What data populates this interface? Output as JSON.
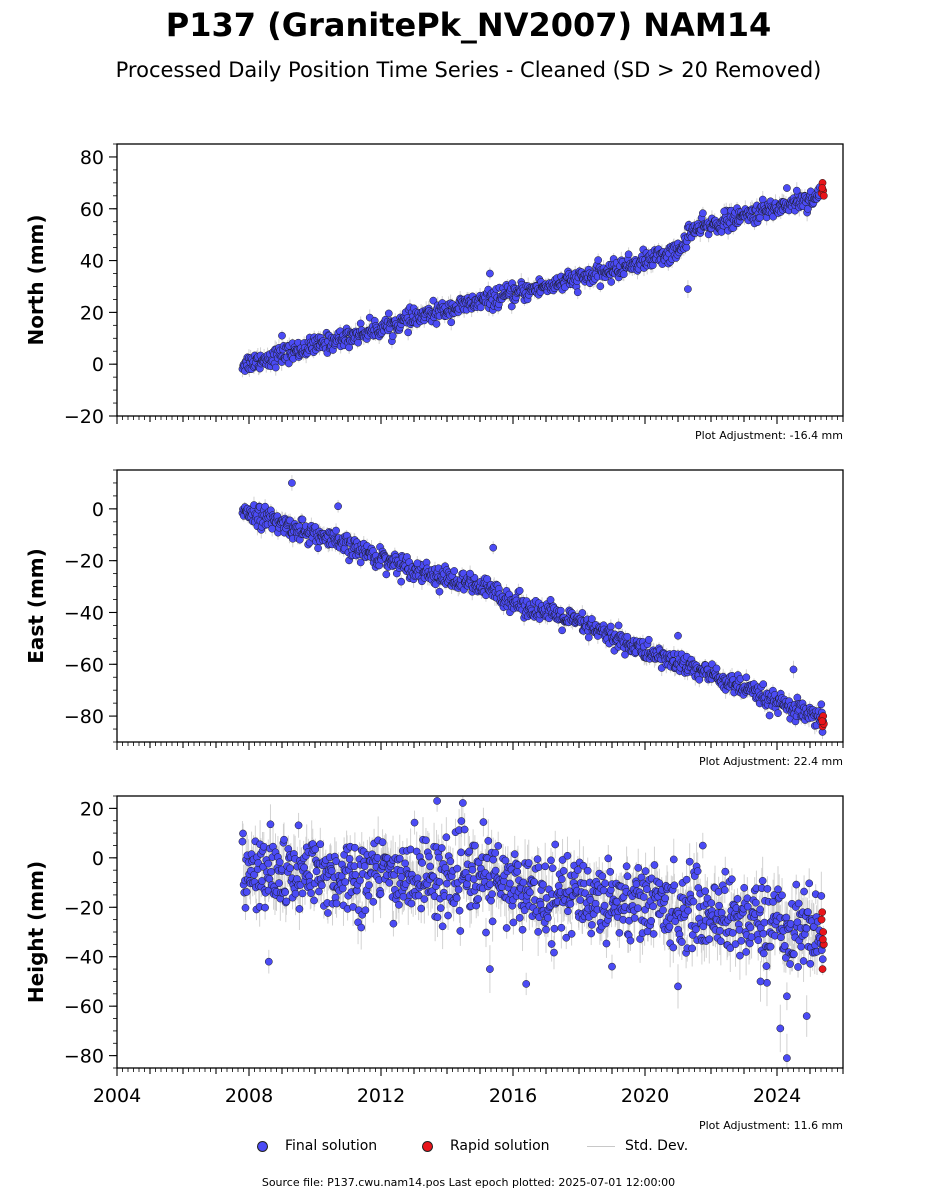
{
  "title": "P137 (GranitePk_NV2007) NAM14",
  "subtitle": "Processed Daily Position Time Series - Cleaned (SD > 20 Removed)",
  "colors": {
    "final": "#4b4bf5",
    "rapid": "#e8151b",
    "stddev": "#c8c8c8"
  },
  "legend": {
    "final": "Final solution",
    "rapid": "Rapid solution",
    "stddev": "Std. Dev."
  },
  "footer": "Source file: P137.cwu.nam14.pos  Last epoch plotted: 2025-07-01 12:00:00",
  "chart_data": [
    {
      "type": "scatter",
      "ylabel": "North (mm)",
      "xlim": [
        2004,
        2026
      ],
      "ylim": [
        -20,
        85
      ],
      "yticks": [
        -20,
        0,
        20,
        40,
        60,
        80
      ],
      "xticks": [
        2004,
        2008,
        2012,
        2016,
        2020,
        2024
      ],
      "show_xtick_labels": false,
      "adjustment": "Plot Adjustment: -16.4 mm",
      "trend": [
        [
          2007.8,
          0
        ],
        [
          2008.5,
          2
        ],
        [
          2010,
          7
        ],
        [
          2012,
          14
        ],
        [
          2014,
          21
        ],
        [
          2015.3,
          25
        ],
        [
          2016,
          27
        ],
        [
          2018,
          33
        ],
        [
          2018.7,
          35
        ],
        [
          2020,
          40
        ],
        [
          2021.1,
          44
        ],
        [
          2021.3,
          51
        ],
        [
          2023,
          57
        ],
        [
          2025.3,
          65
        ]
      ],
      "scatter_sd": 1.8,
      "outliers": [
        [
          2021.3,
          29
        ],
        [
          2015.3,
          35
        ],
        [
          2009.0,
          11
        ],
        [
          2024.3,
          68
        ],
        [
          2024.6,
          67
        ],
        [
          2022.4,
          59
        ]
      ],
      "rapid": [
        [
          2025.35,
          66
        ],
        [
          2025.38,
          70
        ],
        [
          2025.4,
          67
        ],
        [
          2025.42,
          65
        ],
        [
          2025.37,
          68
        ]
      ]
    },
    {
      "type": "scatter",
      "ylabel": "East (mm)",
      "xlim": [
        2004,
        2026
      ],
      "ylim": [
        -90,
        15
      ],
      "yticks": [
        -80,
        -60,
        -40,
        -20,
        0
      ],
      "xticks": [
        2004,
        2008,
        2012,
        2016,
        2020,
        2024
      ],
      "show_xtick_labels": false,
      "adjustment": "Plot Adjustment: 22.4 mm",
      "trend": [
        [
          2007.8,
          0
        ],
        [
          2009,
          -6
        ],
        [
          2010,
          -10
        ],
        [
          2012,
          -19
        ],
        [
          2014,
          -27
        ],
        [
          2015.5,
          -32
        ],
        [
          2016,
          -36
        ],
        [
          2018,
          -44
        ],
        [
          2020,
          -55
        ],
        [
          2022,
          -64
        ],
        [
          2024,
          -75
        ],
        [
          2025.4,
          -82
        ]
      ],
      "scatter_sd": 2.0,
      "outliers": [
        [
          2009.3,
          10
        ],
        [
          2010.7,
          1
        ],
        [
          2015.4,
          -15
        ],
        [
          2021.0,
          -49
        ],
        [
          2019.2,
          -45
        ],
        [
          2024.5,
          -62
        ],
        [
          2013.1,
          -21
        ],
        [
          2014.7,
          -25
        ]
      ],
      "rapid": [
        [
          2025.35,
          -81
        ],
        [
          2025.38,
          -84
        ],
        [
          2025.4,
          -80
        ],
        [
          2025.42,
          -83
        ],
        [
          2025.37,
          -82
        ]
      ]
    },
    {
      "type": "scatter",
      "ylabel": "Height (mm)",
      "xlim": [
        2004,
        2026
      ],
      "ylim": [
        -85,
        25
      ],
      "yticks": [
        -80,
        -60,
        -40,
        -20,
        0,
        20
      ],
      "xticks": [
        2004,
        2008,
        2012,
        2016,
        2020,
        2024
      ],
      "show_xtick_labels": true,
      "adjustment": "Plot Adjustment: 11.6 mm",
      "trend": [
        [
          2007.8,
          -7
        ],
        [
          2012,
          -7
        ],
        [
          2015.5,
          -9
        ],
        [
          2016,
          -13
        ],
        [
          2020,
          -18
        ],
        [
          2022,
          -22
        ],
        [
          2025.4,
          -30
        ]
      ],
      "scatter_sd": 8,
      "outliers": [
        [
          2008.6,
          -42
        ],
        [
          2013.7,
          23
        ],
        [
          2024.3,
          -81
        ],
        [
          2024.1,
          -69
        ],
        [
          2024.3,
          -56
        ],
        [
          2024.9,
          -64
        ],
        [
          2015.3,
          -45
        ],
        [
          2016.4,
          -51
        ],
        [
          2021.0,
          -52
        ],
        [
          2019.0,
          -44
        ],
        [
          2023.5,
          -50
        ]
      ],
      "rapid": [
        [
          2025.35,
          -25
        ],
        [
          2025.38,
          -45
        ],
        [
          2025.4,
          -30
        ],
        [
          2025.42,
          -35
        ],
        [
          2025.37,
          -22
        ],
        [
          2025.39,
          -33
        ]
      ]
    }
  ]
}
